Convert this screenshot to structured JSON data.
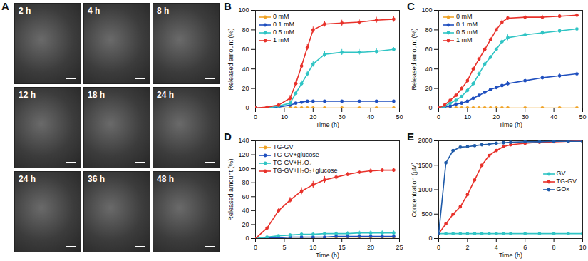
{
  "image_panel": {
    "title": "A",
    "labels": [
      "2 h",
      "4 h",
      "8 h",
      "12 h",
      "18 h",
      "24 h",
      "24 h",
      "36 h",
      "48 h"
    ]
  },
  "chart_data": [
    {
      "type": "line",
      "title": "B",
      "xlabel": "Time (h)",
      "ylabel": "Released amount (%)",
      "xlim": [
        0,
        50
      ],
      "xticks": [
        0,
        10,
        20,
        30,
        40,
        50
      ],
      "ylim": [
        0,
        100
      ],
      "yticks": [
        0,
        20,
        40,
        60,
        80,
        100
      ],
      "legend": "upper left",
      "marker": "circle",
      "line_style": "solid",
      "x": [
        0,
        4,
        8,
        12,
        14,
        16,
        18,
        20,
        24,
        30,
        36,
        42,
        48
      ],
      "series": [
        {
          "name": "0 mM",
          "color": "#f0a224",
          "values": [
            0,
            0,
            0,
            0,
            0,
            0,
            0,
            0,
            0,
            0,
            0,
            0,
            0
          ],
          "errors": [
            0,
            0,
            0,
            0,
            0,
            0,
            0,
            0,
            0,
            0,
            0,
            0,
            0
          ]
        },
        {
          "name": "0.1 mM",
          "color": "#1f4fbf",
          "values": [
            0,
            0,
            1,
            3,
            5,
            6,
            7,
            7,
            7,
            7,
            7,
            7,
            7
          ],
          "errors": [
            0,
            0,
            0,
            1,
            1,
            1,
            1,
            1,
            1,
            1,
            1,
            1,
            1
          ]
        },
        {
          "name": "0.5 mM",
          "color": "#2fc4c4",
          "values": [
            0,
            0,
            2,
            5,
            15,
            25,
            35,
            45,
            55,
            57,
            57,
            58,
            60
          ],
          "errors": [
            0,
            0,
            1,
            2,
            2,
            3,
            3,
            3,
            3,
            3,
            3,
            3,
            2
          ]
        },
        {
          "name": "1 mM",
          "color": "#e8312a",
          "values": [
            0,
            1,
            3,
            10,
            25,
            43,
            62,
            80,
            86,
            87,
            88,
            90,
            91
          ],
          "errors": [
            0,
            1,
            2,
            3,
            3,
            3,
            3,
            3,
            3,
            3,
            3,
            3,
            3
          ]
        }
      ]
    },
    {
      "type": "line",
      "title": "C",
      "xlabel": "Time (h)",
      "ylabel": "Released amount (%)",
      "xlim": [
        0,
        50
      ],
      "xticks": [
        0,
        10,
        20,
        30,
        40,
        50
      ],
      "ylim": [
        0,
        100
      ],
      "yticks": [
        0,
        20,
        40,
        60,
        80,
        100
      ],
      "legend": "upper left",
      "marker": "circle",
      "line_style": "solid",
      "x": [
        0,
        2,
        4,
        6,
        8,
        10,
        12,
        14,
        16,
        18,
        20,
        22,
        24,
        30,
        36,
        42,
        48
      ],
      "series": [
        {
          "name": "0 mM",
          "color": "#f0a224",
          "values": [
            0,
            0,
            0,
            0,
            0,
            0,
            0,
            0,
            0,
            0,
            0,
            0,
            0,
            0,
            0,
            0,
            0
          ],
          "errors": [
            0,
            0,
            0,
            0,
            0,
            0,
            0,
            0,
            0,
            0,
            0,
            0,
            0,
            0,
            0,
            0,
            0
          ]
        },
        {
          "name": "0.1 mM",
          "color": "#1f4fbf",
          "values": [
            0,
            1,
            2,
            4,
            5,
            7,
            10,
            13,
            16,
            19,
            21,
            23,
            25,
            28,
            31,
            33,
            35
          ],
          "errors": [
            0,
            0,
            1,
            1,
            1,
            1,
            1,
            1,
            1,
            1,
            1,
            1,
            2,
            2,
            2,
            2,
            3
          ]
        },
        {
          "name": "0.5 mM",
          "color": "#2fc4c4",
          "values": [
            0,
            2,
            5,
            8,
            12,
            18,
            25,
            35,
            45,
            52,
            60,
            68,
            72,
            75,
            77,
            79,
            81
          ],
          "errors": [
            0,
            1,
            1,
            1,
            1,
            2,
            2,
            2,
            2,
            2,
            2,
            3,
            3,
            2,
            2,
            2,
            2
          ]
        },
        {
          "name": "1 mM",
          "color": "#e8312a",
          "values": [
            0,
            3,
            8,
            13,
            20,
            28,
            40,
            50,
            60,
            70,
            80,
            88,
            92,
            93,
            93,
            94,
            95
          ],
          "errors": [
            0,
            1,
            1,
            1,
            2,
            2,
            2,
            2,
            2,
            2,
            2,
            3,
            2,
            2,
            2,
            2,
            2
          ]
        }
      ]
    },
    {
      "type": "line",
      "title": "D",
      "xlabel": "Time (h)",
      "ylabel": "Released amount (%)",
      "xlim": [
        0,
        25
      ],
      "xticks": [
        0,
        5,
        10,
        15,
        20,
        25
      ],
      "ylim": [
        0,
        140
      ],
      "yticks": [
        0,
        20,
        40,
        60,
        80,
        100,
        120,
        140
      ],
      "legend": "upper left",
      "marker": "circle",
      "line_style": "solid",
      "x": [
        0,
        2,
        4,
        6,
        8,
        10,
        12,
        14,
        16,
        18,
        20,
        22,
        24
      ],
      "series": [
        {
          "name": "TG-GV",
          "color": "#f0a224",
          "values": [
            0,
            0,
            0,
            0,
            0,
            0,
            0,
            0,
            0,
            0,
            0,
            0,
            0
          ],
          "errors": [
            0,
            0,
            0,
            0,
            0,
            0,
            0,
            0,
            0,
            0,
            0,
            0,
            0
          ]
        },
        {
          "name": "TG-GV+glucose",
          "color": "#1f4fbf",
          "values": [
            0,
            1,
            1,
            2,
            2,
            2,
            2,
            3,
            3,
            3,
            3,
            3,
            3
          ],
          "errors": [
            0,
            1,
            1,
            1,
            1,
            1,
            1,
            1,
            1,
            1,
            1,
            1,
            1
          ]
        },
        {
          "name": "TG-GV+H₂O₂",
          "color": "#2fc4c4",
          "values": [
            0,
            2,
            4,
            5,
            6,
            6,
            7,
            7,
            7,
            8,
            8,
            8,
            8
          ],
          "errors": [
            0,
            1,
            1,
            2,
            2,
            2,
            2,
            3,
            3,
            3,
            3,
            3,
            3
          ]
        },
        {
          "name": "TG-GV+H₂O₂+glucose",
          "color": "#e8312a",
          "values": [
            0,
            15,
            40,
            55,
            68,
            77,
            84,
            88,
            92,
            95,
            97,
            98,
            98
          ],
          "errors": [
            0,
            2,
            3,
            4,
            5,
            5,
            5,
            4,
            3,
            3,
            3,
            3,
            3
          ]
        }
      ]
    },
    {
      "type": "line",
      "title": "E",
      "xlabel": "Time (h)",
      "ylabel": "Concentration (μM)",
      "xlim": [
        0,
        10
      ],
      "xticks": [
        0,
        2,
        4,
        6,
        8,
        10
      ],
      "ylim": [
        0,
        2000
      ],
      "yticks": [
        0,
        500,
        1000,
        1500,
        2000
      ],
      "legend": "center right",
      "marker": "circle",
      "line_style": "solid",
      "x": [
        0,
        0.5,
        1,
        1.5,
        2,
        2.5,
        3,
        3.5,
        4,
        4.5,
        5,
        6,
        7,
        8,
        9,
        10
      ],
      "series": [
        {
          "name": "GV",
          "color": "#2fc4c4",
          "values": [
            100,
            100,
            100,
            100,
            100,
            100,
            100,
            100,
            100,
            100,
            100,
            100,
            100,
            100,
            100,
            100
          ]
        },
        {
          "name": "TG-GV",
          "color": "#e8312a",
          "values": [
            100,
            300,
            500,
            650,
            900,
            1200,
            1500,
            1700,
            1800,
            1880,
            1920,
            1950,
            1970,
            1980,
            1990,
            2000
          ]
        },
        {
          "name": "GOx",
          "color": "#1e5aa8",
          "values": [
            100,
            1550,
            1800,
            1870,
            1880,
            1900,
            1920,
            1930,
            1950,
            1960,
            1970,
            1980,
            1980,
            1990,
            1990,
            1990
          ]
        }
      ]
    }
  ]
}
